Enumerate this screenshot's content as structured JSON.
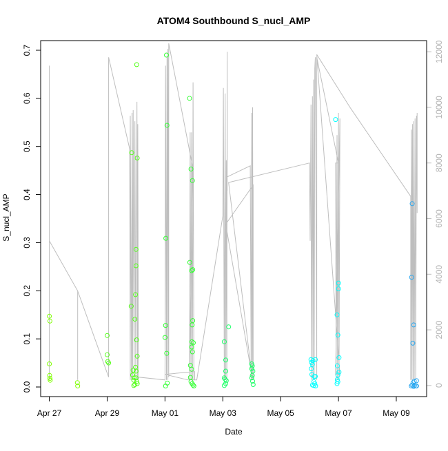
{
  "chart_data": {
    "type": "scatter",
    "title": "ATOM4 Southbound S_nucl_AMP",
    "xlabel": "Date",
    "ylabel": "S_nucl_AMP",
    "x_range": [
      -0.3,
      13.05
    ],
    "ylim": [
      -0.02,
      0.72
    ],
    "y_ticks": [
      0.0,
      0.1,
      0.2,
      0.3,
      0.4,
      0.5,
      0.6,
      0.7
    ],
    "x_ticks": [
      {
        "value": 0,
        "label": "Apr 27"
      },
      {
        "value": 2,
        "label": "Apr 29"
      },
      {
        "value": 4,
        "label": "May 01"
      },
      {
        "value": 6,
        "label": "May 03"
      },
      {
        "value": 8,
        "label": "May 05"
      },
      {
        "value": 10,
        "label": "May 07"
      },
      {
        "value": 12,
        "label": "May 09"
      }
    ],
    "secondary_axis": {
      "range": [
        -400,
        12400
      ],
      "ticks": [
        0,
        2000,
        4000,
        6000,
        8000,
        10000,
        12000
      ],
      "color": "#bebebe"
    },
    "series": [
      {
        "color": "#7fff00",
        "points": [
          [
            0.0,
            0.147
          ],
          [
            0.02,
            0.137
          ],
          [
            0.0,
            0.048
          ],
          [
            0.01,
            0.024
          ],
          [
            0.02,
            0.018
          ],
          [
            0.03,
            0.014
          ],
          [
            0.97,
            0.009
          ],
          [
            0.98,
            0.002
          ]
        ]
      },
      {
        "color": "#55ff1a",
        "points": [
          [
            2.0,
            0.107
          ],
          [
            2.0,
            0.067
          ],
          [
            2.02,
            0.053
          ],
          [
            2.05,
            0.05
          ],
          [
            2.85,
            0.487
          ],
          [
            2.83,
            0.168
          ],
          [
            2.88,
            0.025
          ],
          [
            2.9,
            0.035
          ],
          [
            2.92,
            0.014
          ],
          [
            2.94,
            0.019
          ],
          [
            2.96,
            0.005
          ],
          [
            2.92,
            0.003
          ],
          [
            2.96,
            0.141
          ],
          [
            2.98,
            0.192
          ],
          [
            3.0,
            0.252
          ],
          [
            3.0,
            0.286
          ],
          [
            3.02,
            0.67
          ],
          [
            3.04,
            0.476
          ],
          [
            3.02,
            0.098
          ],
          [
            3.04,
            0.064
          ],
          [
            2.98,
            0.041
          ],
          [
            3.0,
            0.033
          ],
          [
            3.02,
            0.011
          ],
          [
            3.04,
            0.007
          ],
          [
            3.0,
            0.019
          ]
        ]
      },
      {
        "color": "#33ff33",
        "points": [
          [
            4.05,
            0.69
          ],
          [
            4.07,
            0.544
          ],
          [
            4.03,
            0.309
          ],
          [
            4.02,
            0.128
          ],
          [
            4.0,
            0.103
          ],
          [
            4.06,
            0.07
          ],
          [
            4.08,
            0.008
          ],
          [
            4.02,
            0.002
          ],
          [
            4.85,
            0.6
          ],
          [
            4.9,
            0.453
          ],
          [
            4.95,
            0.429
          ],
          [
            4.92,
            0.242
          ],
          [
            4.96,
            0.244
          ],
          [
            4.86,
            0.259
          ],
          [
            4.96,
            0.138
          ],
          [
            4.94,
            0.129
          ],
          [
            4.93,
            0.094
          ],
          [
            4.98,
            0.092
          ],
          [
            4.92,
            0.083
          ],
          [
            4.95,
            0.073
          ],
          [
            4.88,
            0.045
          ],
          [
            4.92,
            0.037
          ],
          [
            4.88,
            0.02
          ],
          [
            4.9,
            0.011
          ],
          [
            4.94,
            0.007
          ],
          [
            4.97,
            0.004
          ],
          [
            5.0,
            0.002
          ]
        ]
      },
      {
        "color": "#1aff66",
        "points": [
          [
            6.2,
            0.125
          ],
          [
            6.05,
            0.094
          ],
          [
            6.1,
            0.056
          ],
          [
            6.1,
            0.033
          ],
          [
            6.05,
            0.019
          ],
          [
            6.08,
            0.016
          ],
          [
            6.12,
            0.013
          ],
          [
            6.1,
            0.007
          ],
          [
            6.05,
            0.003
          ],
          [
            7.0,
            0.048
          ],
          [
            7.02,
            0.044
          ],
          [
            7.0,
            0.038
          ],
          [
            7.04,
            0.033
          ],
          [
            7.02,
            0.024
          ],
          [
            7.0,
            0.019
          ],
          [
            7.03,
            0.012
          ],
          [
            7.05,
            0.005
          ]
        ]
      },
      {
        "color": "#00ffff",
        "points": [
          [
            9.05,
            0.057
          ],
          [
            9.12,
            0.055
          ],
          [
            9.2,
            0.057
          ],
          [
            9.07,
            0.051
          ],
          [
            9.1,
            0.047
          ],
          [
            9.06,
            0.038
          ],
          [
            9.08,
            0.026
          ],
          [
            9.16,
            0.022
          ],
          [
            9.2,
            0.022
          ],
          [
            9.15,
            0.011
          ],
          [
            9.18,
            0.007
          ],
          [
            9.1,
            0.004
          ],
          [
            9.15,
            0.003
          ],
          [
            9.21,
            0.002
          ],
          [
            9.9,
            0.556
          ],
          [
            9.95,
            0.15
          ],
          [
            10.0,
            0.216
          ],
          [
            10.0,
            0.204
          ],
          [
            9.98,
            0.108
          ],
          [
            10.02,
            0.061
          ],
          [
            9.96,
            0.044
          ],
          [
            10.02,
            0.031
          ],
          [
            9.98,
            0.025
          ],
          [
            9.96,
            0.015
          ],
          [
            9.98,
            0.011
          ],
          [
            9.95,
            0.007
          ]
        ]
      },
      {
        "color": "#2ba8f0",
        "points": [
          [
            12.55,
            0.381
          ],
          [
            12.53,
            0.228
          ],
          [
            12.6,
            0.129
          ],
          [
            12.57,
            0.091
          ],
          [
            12.62,
            0.012
          ],
          [
            12.7,
            0.013
          ],
          [
            12.58,
            0.009
          ],
          [
            12.55,
            0.004
          ],
          [
            12.63,
            0.003
          ],
          [
            12.68,
            0.002
          ],
          [
            12.52,
            0.002
          ],
          [
            12.6,
            0.001
          ],
          [
            12.7,
            0.002
          ]
        ]
      }
    ],
    "secondary_line": [
      [
        0,
        2700
      ],
      [
        0,
        200
      ],
      [
        0,
        11500
      ],
      [
        0,
        200
      ],
      [
        0,
        5200
      ],
      [
        0.98,
        3400
      ],
      [
        0.98,
        200
      ],
      [
        0.98,
        3400
      ],
      [
        2.05,
        300
      ],
      [
        2.05,
        11800
      ],
      [
        2.78,
        8500
      ],
      [
        2.8,
        200
      ],
      [
        2.8,
        9700
      ],
      [
        2.84,
        200
      ],
      [
        2.86,
        9800
      ],
      [
        2.88,
        200
      ],
      [
        2.9,
        9900
      ],
      [
        2.93,
        200
      ],
      [
        2.96,
        9500
      ],
      [
        2.99,
        200
      ],
      [
        3.03,
        10200
      ],
      [
        3.05,
        200
      ],
      [
        3.06,
        9400
      ],
      [
        3.08,
        200
      ],
      [
        3.08,
        300
      ],
      [
        4.0,
        200
      ],
      [
        4.02,
        11500
      ],
      [
        4.05,
        200
      ],
      [
        4.07,
        11800
      ],
      [
        4.1,
        200
      ],
      [
        4.1,
        12100
      ],
      [
        4.13,
        300
      ],
      [
        4.13,
        12300
      ],
      [
        4.95,
        7900
      ],
      [
        4.85,
        200
      ],
      [
        4.87,
        9100
      ],
      [
        4.9,
        200
      ],
      [
        4.92,
        9100
      ],
      [
        4.95,
        200
      ],
      [
        4.97,
        10900
      ],
      [
        5.0,
        200
      ],
      [
        5.02,
        200
      ],
      [
        5.02,
        500
      ],
      [
        5.02,
        500
      ],
      [
        4.0,
        400
      ],
      [
        4.8,
        200
      ],
      [
        5.1,
        200
      ],
      [
        6.0,
        6100
      ],
      [
        6.02,
        10700
      ],
      [
        6.05,
        200
      ],
      [
        6.08,
        10500
      ],
      [
        6.1,
        200
      ],
      [
        6.12,
        8100
      ],
      [
        6.14,
        200
      ],
      [
        6.15,
        12000
      ],
      [
        6.15,
        7000
      ],
      [
        6.15,
        7500
      ],
      [
        6.95,
        7900
      ],
      [
        6.98,
        200
      ],
      [
        7.0,
        9800
      ],
      [
        7.0,
        9800
      ],
      [
        7.02,
        200
      ],
      [
        7.03,
        10000
      ],
      [
        7.05,
        200
      ],
      [
        7.05,
        7200
      ],
      [
        7.05,
        7200
      ],
      [
        6.1,
        5800
      ],
      [
        7.0,
        400
      ],
      [
        6.2,
        7300
      ],
      [
        9.0,
        8000
      ],
      [
        9.02,
        5200
      ],
      [
        9.05,
        10100
      ],
      [
        9.07,
        200
      ],
      [
        9.1,
        10400
      ],
      [
        9.12,
        200
      ],
      [
        9.14,
        11000
      ],
      [
        9.16,
        200
      ],
      [
        9.18,
        11400
      ],
      [
        9.2,
        11800
      ],
      [
        9.25,
        200
      ],
      [
        9.25,
        11800
      ],
      [
        10.0,
        8000
      ],
      [
        9.9,
        8000
      ],
      [
        9.92,
        200
      ],
      [
        9.95,
        9000
      ],
      [
        9.97,
        200
      ],
      [
        10.0,
        9800
      ],
      [
        10.02,
        200
      ],
      [
        10.05,
        9600
      ],
      [
        9.9,
        400
      ],
      [
        10.05,
        400
      ],
      [
        9.25,
        11900
      ],
      [
        10.4,
        10000
      ],
      [
        12.5,
        6800
      ],
      [
        12.5,
        200
      ],
      [
        12.52,
        9200
      ],
      [
        12.54,
        200
      ],
      [
        12.56,
        9400
      ],
      [
        12.58,
        200
      ],
      [
        12.6,
        9500
      ],
      [
        12.62,
        200
      ],
      [
        12.65,
        9600
      ],
      [
        12.67,
        200
      ],
      [
        12.7,
        9700
      ],
      [
        12.72,
        6200
      ],
      [
        12.72,
        9800
      ]
    ]
  }
}
